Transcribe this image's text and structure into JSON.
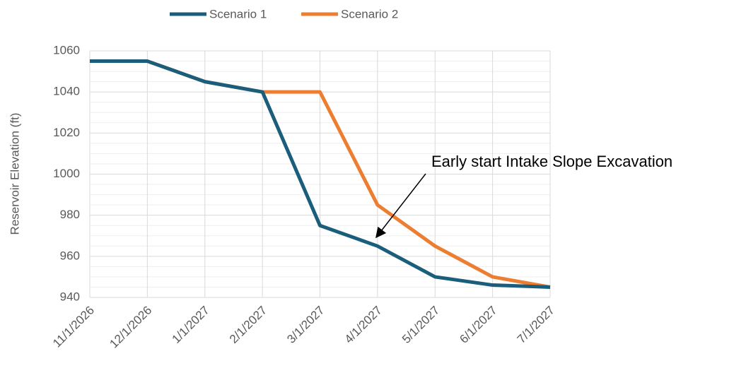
{
  "chart_data": {
    "type": "line",
    "y_label": "Reservoir Elevation (ft)",
    "annotation": "Early start Intake Slope Excavation",
    "categories": [
      "11/1/2026",
      "12/1/2026",
      "1/1/2027",
      "2/1/2027",
      "3/1/2027",
      "4/1/2027",
      "5/1/2027",
      "6/1/2027",
      "7/1/2027"
    ],
    "series": [
      {
        "name": "Scenario 1",
        "color": "#1b5e7b",
        "values": [
          1055,
          1055,
          1045,
          1040,
          975,
          965,
          950,
          946,
          945
        ]
      },
      {
        "name": "Scenario 2",
        "color": "#ed7d31",
        "values": [
          1055,
          1055,
          1045,
          1040,
          1040,
          985,
          965,
          950,
          945
        ]
      }
    ],
    "ylim": [
      940,
      1060
    ],
    "yticks": [
      940,
      960,
      980,
      1000,
      1020,
      1040,
      1060
    ],
    "y_minor_ticks": [
      945,
      950,
      955,
      965,
      970,
      975,
      985,
      990,
      995,
      1005,
      1010,
      1015,
      1025,
      1030,
      1035,
      1045,
      1050,
      1055
    ],
    "grid": true,
    "legend": "top"
  }
}
